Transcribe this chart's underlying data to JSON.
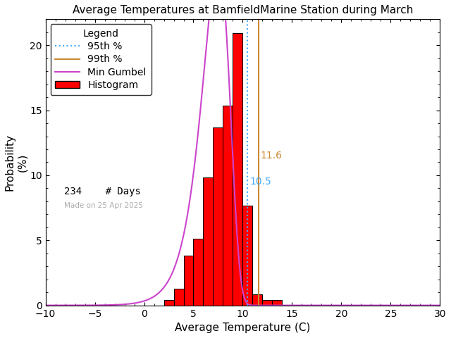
{
  "title": "Average Temperatures at BamfieldMarine Station during March",
  "xlabel": "Average Temperature (C)",
  "ylabel": "Probability\n(%)",
  "xlim": [
    -10,
    30
  ],
  "ylim": [
    0,
    22
  ],
  "xticks": [
    -10,
    -5,
    0,
    5,
    10,
    15,
    20,
    25,
    30
  ],
  "yticks": [
    0,
    5,
    10,
    15,
    20
  ],
  "bar_edges": [
    2.0,
    3.0,
    4.0,
    5.0,
    6.0,
    7.0,
    8.0,
    9.0,
    10.0,
    11.0,
    12.0,
    13.0,
    14.0
  ],
  "bar_heights": [
    0.43,
    1.28,
    3.85,
    5.13,
    9.83,
    13.68,
    15.38,
    20.94,
    7.69,
    0.85,
    0.43,
    0.43,
    0.0
  ],
  "bar_color": "#ff0000",
  "bar_edgecolor": "#000000",
  "gumbel_color": "#cc44cc",
  "gumbel_mu": 7.5,
  "gumbel_beta": 1.4,
  "pct95_value": 10.5,
  "pct99_value": 11.6,
  "pct95_color": "#44aaff",
  "pct99_color": "#cc8833",
  "pct95_label": "10.5",
  "pct99_label": "11.6",
  "n_days": 234,
  "made_on_text": "Made on 25 Apr 2025",
  "made_on_color": "#aaaaaa",
  "background_color": "#ffffff",
  "title_fontsize": 11,
  "axis_fontsize": 11,
  "tick_fontsize": 10,
  "legend_fontsize": 10
}
